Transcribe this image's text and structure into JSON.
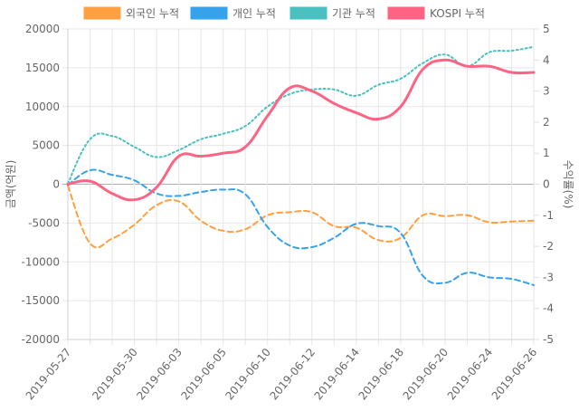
{
  "chart_data": {
    "type": "line",
    "x": [
      "2019-05-27",
      "2019-05-28",
      "2019-05-29",
      "2019-05-30",
      "2019-05-31",
      "2019-06-03",
      "2019-06-04",
      "2019-06-05",
      "2019-06-07",
      "2019-06-10",
      "2019-06-11",
      "2019-06-12",
      "2019-06-13",
      "2019-06-14",
      "2019-06-17",
      "2019-06-18",
      "2019-06-19",
      "2019-06-20",
      "2019-06-21",
      "2019-06-24",
      "2019-06-25",
      "2019-06-26"
    ],
    "x_tick_labels": [
      "2019-05-27",
      "2019-05-30",
      "2019-06-03",
      "2019-06-05",
      "2019-06-10",
      "2019-06-12",
      "2019-06-14",
      "2019-06-18",
      "2019-06-20",
      "2019-06-24",
      "2019-06-26"
    ],
    "ylabel_left": "금액(억원)",
    "ylabel_right": "수익률(%)",
    "ylim_left": [
      -20000,
      20000
    ],
    "ylim_right": [
      -5,
      5
    ],
    "yticks_left": [
      20000,
      15000,
      10000,
      5000,
      0,
      -5000,
      -10000,
      -15000,
      -20000
    ],
    "yticks_right": [
      5,
      4,
      3,
      2,
      1,
      0,
      -1,
      -2,
      -3,
      -4,
      -5
    ],
    "grid": true,
    "legend_position": "top",
    "series": [
      {
        "name": "외국인 누적",
        "axis": "left",
        "color": "#FFA040",
        "style": "dashed",
        "values": [
          -200,
          -7600,
          -7000,
          -5200,
          -2700,
          -2200,
          -4700,
          -6000,
          -5800,
          -4000,
          -3600,
          -3600,
          -5400,
          -5600,
          -7200,
          -6900,
          -4000,
          -4100,
          -4000,
          -4900,
          -4800,
          -4700
        ]
      },
      {
        "name": "개인 누적",
        "axis": "left",
        "color": "#36A2EB",
        "style": "dashed",
        "values": [
          -100,
          1800,
          1200,
          500,
          -1200,
          -1500,
          -1000,
          -700,
          -1300,
          -5500,
          -7900,
          -8100,
          -6900,
          -5100,
          -5400,
          -6300,
          -11800,
          -12700,
          -11400,
          -12000,
          -12200,
          -13000
        ]
      },
      {
        "name": "기관 누적",
        "axis": "left",
        "color": "#4BC0C0",
        "style": "dotted",
        "values": [
          100,
          5800,
          6200,
          4800,
          3500,
          4400,
          5800,
          6500,
          7500,
          10000,
          11600,
          12200,
          12200,
          11400,
          12800,
          13600,
          15600,
          16700,
          15200,
          17000,
          17200,
          17700
        ]
      },
      {
        "name": "KOSPI 누적",
        "axis": "right",
        "color": "#FF6384",
        "style": "solid",
        "values": [
          0,
          0.1,
          -0.3,
          -0.5,
          -0.1,
          0.9,
          0.9,
          1.0,
          1.2,
          2.2,
          3.1,
          3.0,
          2.6,
          2.3,
          2.1,
          2.5,
          3.7,
          4.0,
          3.8,
          3.8,
          3.6,
          3.6
        ]
      }
    ]
  }
}
